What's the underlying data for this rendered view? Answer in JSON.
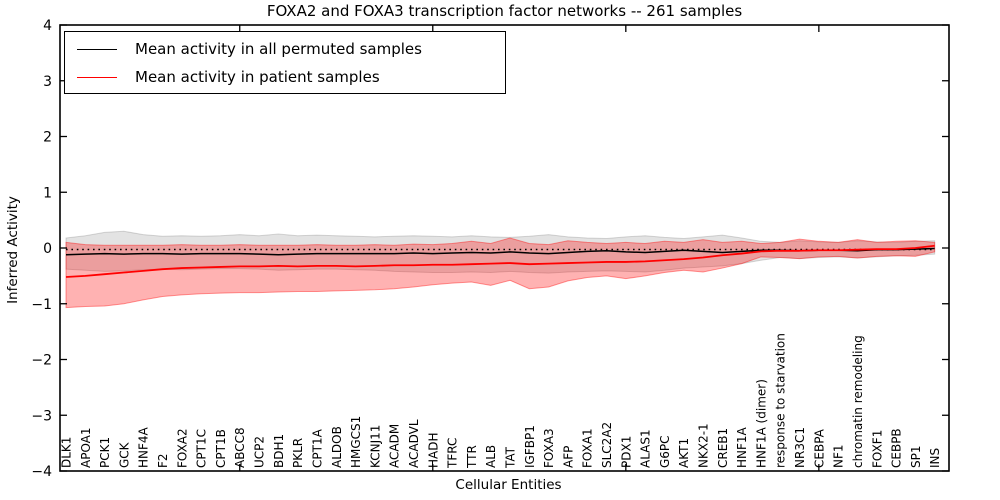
{
  "title": "FOXA2 and FOXA3 transcription factor networks -- 261 samples",
  "legend": {
    "entries": [
      {
        "label": "Mean activity in all permuted samples",
        "color": "#000000"
      },
      {
        "label": "Mean activity in patient samples",
        "color": "#ff0000"
      }
    ]
  },
  "axes": {
    "ylabel": "Inferred Activity",
    "xlabel": "Cellular Entities",
    "y_ticks": [
      "4",
      "3",
      "2",
      "1",
      "0",
      "−1",
      "−2",
      "−3",
      "−4"
    ],
    "y_tick_values": [
      4,
      3,
      2,
      1,
      0,
      -1,
      -2,
      -3,
      -4
    ],
    "x_major_tick_indices": [
      9,
      19,
      29,
      39
    ],
    "ylim": [
      -4,
      4
    ]
  },
  "chart_data": {
    "type": "line",
    "title": "FOXA2 and FOXA3 transcription factor networks -- 261 samples",
    "xlabel": "Cellular Entities",
    "ylabel": "Inferred Activity",
    "ylim": [
      -4,
      4
    ],
    "legend_position": "upper left",
    "grid": false,
    "categories": [
      "DLK1",
      "APOA1",
      "PCK1",
      "GCK",
      "HNF4A",
      "F2",
      "FOXA2",
      "CPT1C",
      "CPT1B",
      "ABCC8",
      "UCP2",
      "BDH1",
      "PKLR",
      "CPT1A",
      "ALDOB",
      "HMGCS1",
      "KCNJ11",
      "ACADM",
      "ACADVL",
      "HADH",
      "TFRC",
      "TTR",
      "ALB",
      "TAT",
      "IGFBP1",
      "FOXA3",
      "AFP",
      "FOXA1",
      "SLC2A2",
      "PDX1",
      "ALAS1",
      "G6PC",
      "AKT1",
      "NKX2-1",
      "CREB1",
      "HNF1A",
      "HNF1A (dimer)",
      "response to starvation",
      "NR3C1",
      "CEBPA",
      "NF1",
      "chromatin remodeling",
      "FOXF1",
      "CEBPB",
      "SP1",
      "INS"
    ],
    "series": [
      {
        "name": "Mean activity in all permuted samples",
        "color": "#000000",
        "width": 1.5,
        "values": [
          -0.12,
          -0.11,
          -0.1,
          -0.11,
          -0.1,
          -0.1,
          -0.11,
          -0.1,
          -0.1,
          -0.1,
          -0.11,
          -0.12,
          -0.11,
          -0.1,
          -0.1,
          -0.1,
          -0.1,
          -0.1,
          -0.09,
          -0.1,
          -0.09,
          -0.08,
          -0.09,
          -0.07,
          -0.09,
          -0.1,
          -0.08,
          -0.06,
          -0.05,
          -0.07,
          -0.08,
          -0.06,
          -0.04,
          -0.06,
          -0.08,
          -0.06,
          -0.04,
          -0.04,
          -0.05,
          -0.04,
          -0.04,
          -0.05,
          -0.03,
          -0.03,
          -0.02,
          -0.01
        ]
      },
      {
        "name": "Mean activity in patient samples",
        "color": "#ff0000",
        "width": 1.8,
        "values": [
          -0.52,
          -0.5,
          -0.47,
          -0.44,
          -0.41,
          -0.38,
          -0.36,
          -0.35,
          -0.34,
          -0.33,
          -0.33,
          -0.32,
          -0.33,
          -0.32,
          -0.32,
          -0.33,
          -0.32,
          -0.31,
          -0.31,
          -0.3,
          -0.3,
          -0.29,
          -0.28,
          -0.27,
          -0.29,
          -0.28,
          -0.27,
          -0.26,
          -0.25,
          -0.25,
          -0.24,
          -0.22,
          -0.2,
          -0.17,
          -0.13,
          -0.1,
          -0.06,
          -0.05,
          -0.05,
          -0.04,
          -0.04,
          -0.03,
          -0.02,
          -0.02,
          0.0,
          0.04
        ]
      }
    ],
    "bands": [
      {
        "name": "permuted-samples-band",
        "fill": "rgba(0,0,0,0.11)",
        "stroke": "rgba(0,0,0,0.15)",
        "upper": [
          0.18,
          0.22,
          0.28,
          0.3,
          0.24,
          0.21,
          0.22,
          0.21,
          0.22,
          0.24,
          0.22,
          0.25,
          0.22,
          0.23,
          0.22,
          0.21,
          0.2,
          0.21,
          0.22,
          0.21,
          0.2,
          0.22,
          0.2,
          0.19,
          0.21,
          0.24,
          0.2,
          0.18,
          0.17,
          0.2,
          0.22,
          0.19,
          0.17,
          0.2,
          0.23,
          0.18,
          0.12,
          0.1,
          0.13,
          0.11,
          0.1,
          0.13,
          0.11,
          0.1,
          0.12,
          0.13
        ],
        "lower": [
          -0.38,
          -0.4,
          -0.42,
          -0.41,
          -0.39,
          -0.38,
          -0.39,
          -0.38,
          -0.37,
          -0.37,
          -0.38,
          -0.4,
          -0.39,
          -0.38,
          -0.38,
          -0.39,
          -0.4,
          -0.42,
          -0.43,
          -0.44,
          -0.44,
          -0.43,
          -0.44,
          -0.42,
          -0.44,
          -0.45,
          -0.43,
          -0.42,
          -0.41,
          -0.42,
          -0.43,
          -0.4,
          -0.36,
          -0.34,
          -0.32,
          -0.28,
          -0.22,
          -0.17,
          -0.19,
          -0.17,
          -0.16,
          -0.18,
          -0.16,
          -0.14,
          -0.13,
          -0.11
        ]
      },
      {
        "name": "patient-samples-band",
        "fill": "rgba(255,0,0,0.30)",
        "stroke": "rgba(255,0,0,0.40)",
        "upper": [
          0.1,
          0.06,
          0.05,
          0.05,
          0.05,
          0.05,
          0.06,
          0.05,
          0.05,
          0.06,
          0.05,
          0.05,
          0.05,
          0.06,
          0.05,
          0.05,
          0.06,
          0.05,
          0.07,
          0.06,
          0.08,
          0.12,
          0.08,
          0.18,
          0.08,
          0.06,
          0.13,
          0.1,
          0.08,
          0.1,
          0.08,
          0.12,
          0.1,
          0.15,
          0.1,
          0.12,
          0.08,
          0.1,
          0.16,
          0.12,
          0.1,
          0.15,
          0.1,
          0.12,
          0.13,
          0.1
        ],
        "lower": [
          -1.07,
          -1.05,
          -1.04,
          -1.0,
          -0.93,
          -0.87,
          -0.84,
          -0.82,
          -0.81,
          -0.8,
          -0.8,
          -0.79,
          -0.78,
          -0.78,
          -0.77,
          -0.76,
          -0.75,
          -0.73,
          -0.7,
          -0.66,
          -0.63,
          -0.61,
          -0.67,
          -0.58,
          -0.73,
          -0.7,
          -0.59,
          -0.53,
          -0.5,
          -0.55,
          -0.5,
          -0.44,
          -0.4,
          -0.43,
          -0.36,
          -0.28,
          -0.16,
          -0.17,
          -0.19,
          -0.16,
          -0.15,
          -0.18,
          -0.15,
          -0.14,
          -0.15,
          -0.07
        ]
      }
    ],
    "reference_line": {
      "y": 0,
      "style": "dotted",
      "color": "#000000"
    }
  }
}
